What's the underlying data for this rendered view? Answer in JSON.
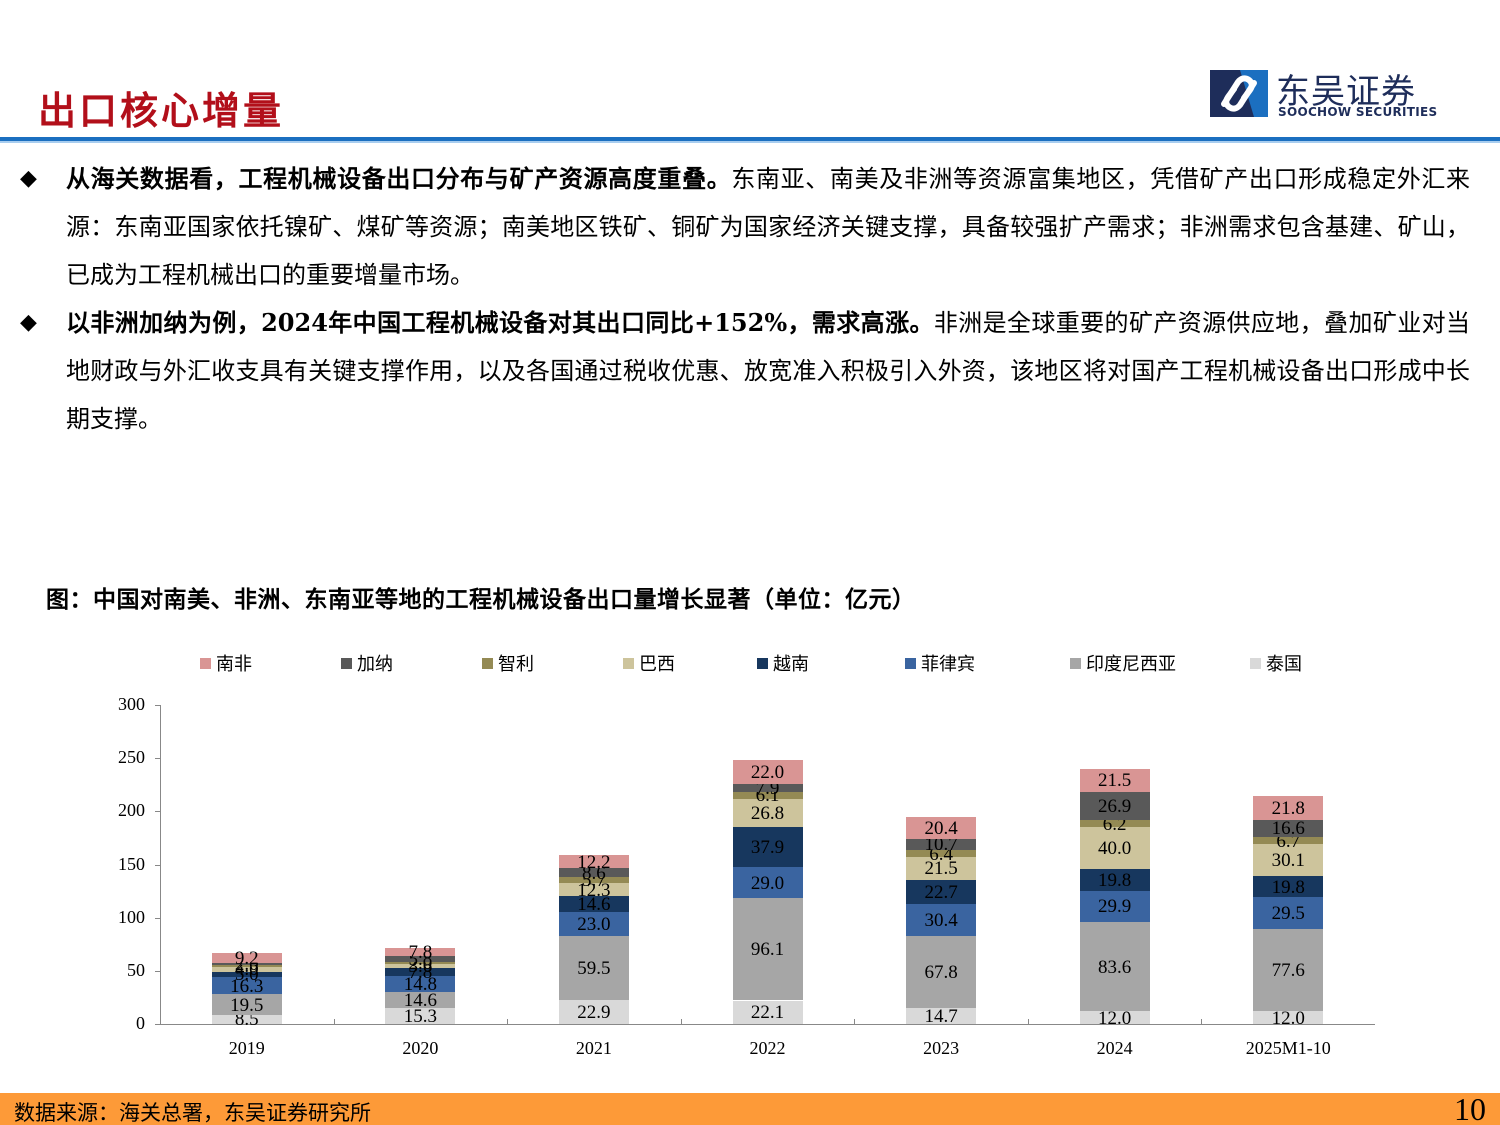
{
  "header": {
    "title": "出口核心增量",
    "logo": {
      "cn": "东吴证券",
      "en": "SOOCHOW SECURITIES",
      "icon": "soochow-logo-icon"
    },
    "colors": {
      "title": "#b20f1a",
      "rule": "#1b6fc0"
    }
  },
  "bullets": [
    {
      "bold": "从海关数据看，工程机械设备出口分布与矿产资源高度重叠。",
      "text": "东南亚、南美及非洲等资源富集地区，凭借矿产出口形成稳定外汇来源：东南亚国家依托镍矿、煤矿等资源；南美地区铁矿、铜矿为国家经济关键支撑，具备较强扩产需求；非洲需求包含基建、矿山，已成为工程机械出口的重要增量市场。"
    },
    {
      "bold": "以非洲加纳为例，2024年中国工程机械设备对其出口同比+152%，需求高涨。",
      "text": "非洲是全球重要的矿产资源供应地，叠加矿业对当地财政与外汇收支具有关键支撑作用，以及各国通过税收优惠、放宽准入积极引入外资，该地区将对国产工程机械设备出口形成中长期支撑。"
    }
  ],
  "figure": {
    "caption": "图：中国对南美、非洲、东南亚等地的工程机械设备出口量增长显著（单位：亿元）"
  },
  "chart_data": {
    "type": "bar",
    "stacked": true,
    "title": "中国对南美、非洲、东南亚等地的工程机械设备出口量增长显著（单位：亿元）",
    "xlabel": "",
    "ylabel": "亿元",
    "ylim": [
      0,
      300
    ],
    "yticks": [
      0,
      50,
      100,
      150,
      200,
      250,
      300
    ],
    "grid": false,
    "legend_position": "top",
    "categories": [
      "2019",
      "2020",
      "2021",
      "2022",
      "2023",
      "2024",
      "2025M1-10"
    ],
    "series": [
      {
        "name": "泰国",
        "color": "#d9d9d9",
        "values": [
          8.5,
          15.3,
          22.9,
          22.1,
          14.7,
          12.0,
          12.0
        ]
      },
      {
        "name": "印度尼西亚",
        "color": "#a6a6a6",
        "values": [
          19.5,
          14.6,
          59.5,
          96.1,
          67.8,
          83.6,
          77.6
        ]
      },
      {
        "name": "菲律宾",
        "color": "#3a64a0",
        "values": [
          16.3,
          14.8,
          23.0,
          29.0,
          30.4,
          29.9,
          29.5
        ]
      },
      {
        "name": "越南",
        "color": "#17375e",
        "values": [
          5.0,
          7.8,
          14.6,
          37.9,
          22.7,
          19.8,
          19.8
        ]
      },
      {
        "name": "巴西",
        "color": "#cdc49c",
        "values": [
          4.0,
          3.6,
          12.3,
          26.8,
          21.5,
          40.0,
          30.1
        ]
      },
      {
        "name": "智利",
        "color": "#948a54",
        "values": [
          2.5,
          2.0,
          5.7,
          6.1,
          6.4,
          6.2,
          6.7
        ]
      },
      {
        "name": "加纳",
        "color": "#595959",
        "values": [
          2.0,
          5.8,
          8.6,
          7.9,
          10.7,
          26.9,
          16.6
        ]
      },
      {
        "name": "南非",
        "color": "#d99594",
        "values": [
          9.2,
          7.8,
          12.2,
          22.0,
          20.4,
          21.5,
          21.8
        ]
      }
    ],
    "legend_order": [
      "南非",
      "加纳",
      "智利",
      "巴西",
      "越南",
      "菲律宾",
      "印度尼西亚",
      "泰国"
    ],
    "notes": "2019 and 2020 small-segment labels overlap in the source; values for 越南/巴西/智利/加纳 in those years are estimated from segment heights."
  },
  "footer": {
    "source": "数据来源：海关总署，东吴证券研究所",
    "page_number": "10",
    "color": "#fd9a38"
  }
}
